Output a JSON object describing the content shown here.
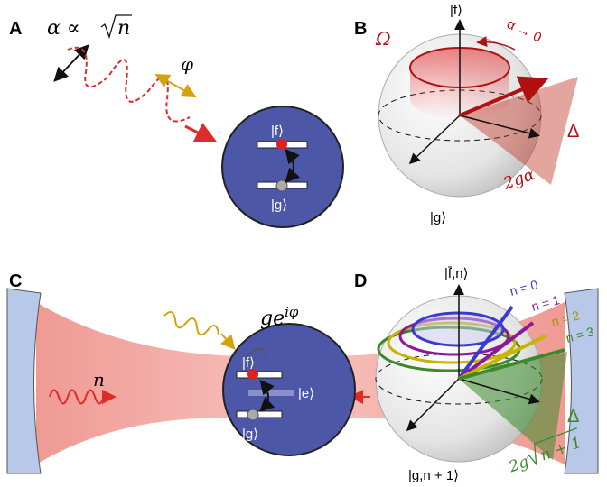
{
  "panels": [
    {
      "label": "A",
      "alpha_prefix": "α ∝",
      "alpha_radicand": "n",
      "phase": "φ",
      "state_f": "|f⟩",
      "state_g": "|g⟩"
    },
    {
      "label": "B",
      "north": "|f⟩",
      "south": "|g⟩",
      "rabi": "Ω",
      "limit": "α → 0",
      "detuning": "Δ",
      "coupling": "2gα"
    },
    {
      "label": "C",
      "photon_number": "n",
      "coupling_base": "ge",
      "coupling_exp": "iφ",
      "state_f": "|f⟩",
      "state_e": "|e⟩",
      "state_g": "|g⟩"
    },
    {
      "label": "D",
      "north": "|f̄,n⟩",
      "south": "|g,n + 1⟩",
      "rings": [
        "n = 0",
        "n = 1",
        "n = 2",
        "n = 3"
      ],
      "detuning": "Δ",
      "coupling_prefix": "2g",
      "coupling_radicand": "n + 1"
    }
  ]
}
